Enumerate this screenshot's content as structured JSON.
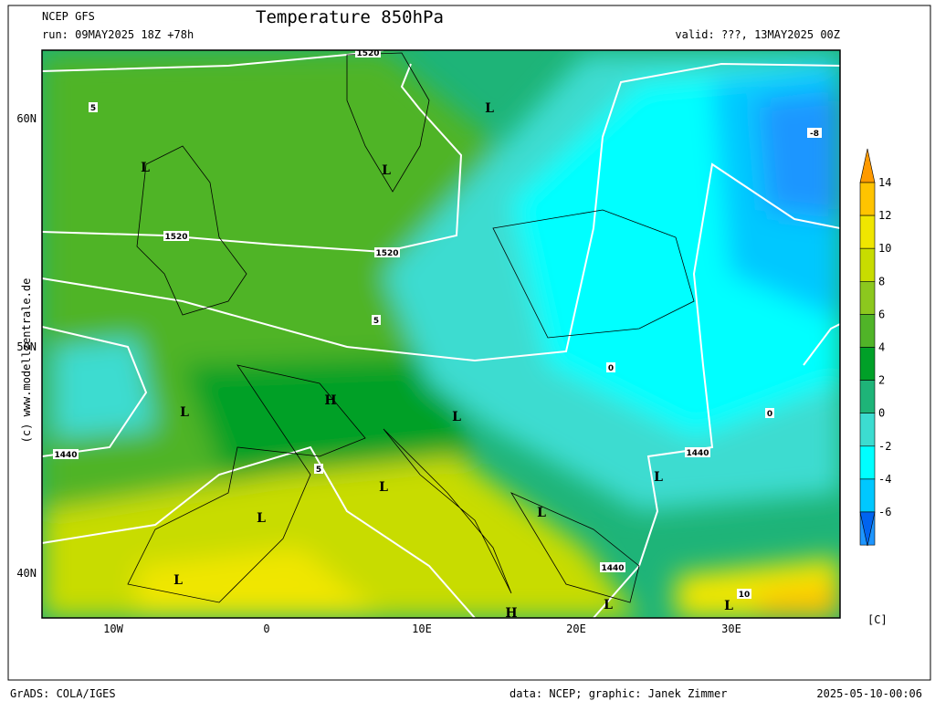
{
  "header": {
    "model": "NCEP GFS",
    "run": "run: 09MAY2025 18Z +78h",
    "title": "Temperature 850hPa",
    "valid": "valid: ???, 13MAY2025 00Z"
  },
  "axes": {
    "lat_labels": [
      "60N",
      "50N",
      "40N"
    ],
    "lon_labels": [
      "10W",
      "0",
      "10E",
      "20E",
      "30E"
    ]
  },
  "credit": "(c) www.modellzentrale.de",
  "colorbar": {
    "ticks": [
      14,
      12,
      10,
      8,
      6,
      4,
      2,
      0,
      -2,
      -4,
      -6
    ],
    "colors": [
      "#ff9a00",
      "#ffc400",
      "#f0e600",
      "#c8dc00",
      "#8cc81e",
      "#50b428",
      "#00a028",
      "#1eb478",
      "#3cdcd0",
      "#00ffff",
      "#00c8ff",
      "#1e96ff",
      "#0064f0"
    ],
    "unit": "[C]"
  },
  "map": {
    "labels": [
      "1520",
      "1520",
      "1520",
      "1440",
      "1440",
      "1440",
      "L",
      "L",
      "L",
      "L",
      "L",
      "L",
      "L",
      "L",
      "L",
      "L",
      "L",
      "L",
      "H",
      "H",
      "5",
      "5",
      "5",
      "0",
      "0",
      "10",
      "-8"
    ]
  },
  "footer": {
    "left": "GrADS: COLA/IGES",
    "center": "data: NCEP; graphic: Janek Zimmer",
    "right": "2025-05-10-00:06"
  }
}
